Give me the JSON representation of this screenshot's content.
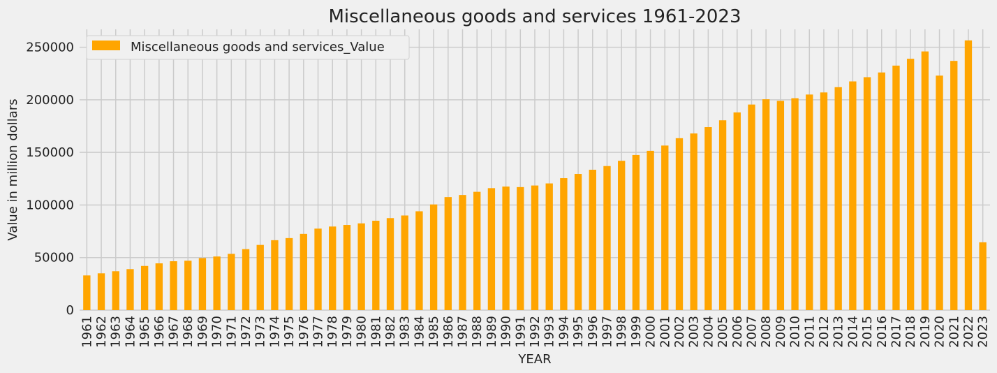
{
  "chart_data": {
    "type": "bar",
    "title": "Miscellaneous goods and services 1961-2023",
    "xlabel": "YEAR",
    "ylabel": "Value in million dollars",
    "ylim": [
      0,
      267000
    ],
    "yticks": [
      0,
      50000,
      100000,
      150000,
      200000,
      250000
    ],
    "ytick_labels": [
      "0",
      "50000",
      "100000",
      "150000",
      "200000",
      "250000"
    ],
    "grid": true,
    "legend_position": "top-left",
    "series": [
      {
        "name": "Miscellaneous goods and services_Value",
        "color": "#FFA500",
        "values": [
          33000,
          35000,
          37000,
          39000,
          42000,
          44500,
          46500,
          47000,
          49500,
          51000,
          53500,
          58000,
          62000,
          66500,
          68500,
          72500,
          77500,
          79500,
          81000,
          82500,
          85000,
          87500,
          90000,
          94000,
          100500,
          107500,
          109500,
          112500,
          116000,
          117500,
          117000,
          118500,
          120500,
          125500,
          129500,
          133500,
          137000,
          142000,
          147500,
          151500,
          156500,
          163500,
          168000,
          174000,
          180500,
          188000,
          195500,
          200500,
          199000,
          201500,
          205000,
          207000,
          212000,
          217500,
          221500,
          226000,
          232500,
          239000,
          246000,
          223000,
          237000,
          256500,
          64500
        ]
      }
    ],
    "categories": [
      "1961",
      "1962",
      "1963",
      "1964",
      "1965",
      "1966",
      "1967",
      "1968",
      "1969",
      "1970",
      "1971",
      "1972",
      "1973",
      "1974",
      "1975",
      "1976",
      "1977",
      "1978",
      "1979",
      "1980",
      "1981",
      "1982",
      "1983",
      "1984",
      "1985",
      "1986",
      "1987",
      "1988",
      "1989",
      "1990",
      "1991",
      "1992",
      "1993",
      "1994",
      "1995",
      "1996",
      "1997",
      "1998",
      "1999",
      "2000",
      "2001",
      "2002",
      "2003",
      "2004",
      "2005",
      "2006",
      "2007",
      "2008",
      "2009",
      "2010",
      "2011",
      "2012",
      "2013",
      "2014",
      "2015",
      "2016",
      "2017",
      "2018",
      "2019",
      "2020",
      "2021",
      "2022",
      "2023"
    ]
  }
}
